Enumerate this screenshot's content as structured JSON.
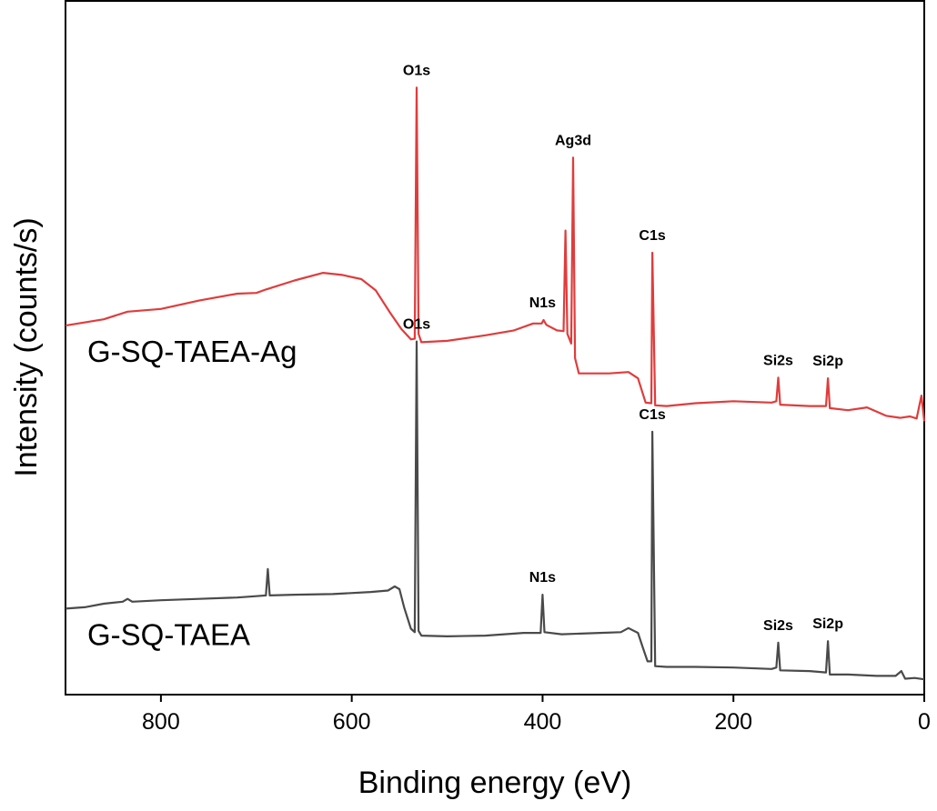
{
  "chart_data": {
    "type": "line",
    "title": "",
    "xlabel": "Binding energy (eV)",
    "ylabel": "Intensity (counts/s)",
    "xlim": [
      900,
      0
    ],
    "x_reversed": true,
    "ylim": [
      0,
      100
    ],
    "y_ticks_shown": false,
    "grid": false,
    "legend": "none",
    "x_ticks": [
      {
        "value": 800,
        "label": "800"
      },
      {
        "value": 600,
        "label": "600"
      },
      {
        "value": 400,
        "label": "400"
      },
      {
        "value": 200,
        "label": "200"
      },
      {
        "value": 0,
        "label": "0"
      }
    ],
    "series": [
      {
        "name": "G-SQ-TAEA-Ag",
        "color": "#e03c3c",
        "points": [
          [
            900,
            53.2
          ],
          [
            860,
            54.1
          ],
          [
            835,
            55.2
          ],
          [
            800,
            55.6
          ],
          [
            760,
            56.8
          ],
          [
            720,
            57.8
          ],
          [
            700,
            57.9
          ],
          [
            690,
            58.4
          ],
          [
            660,
            59.7
          ],
          [
            630,
            60.8
          ],
          [
            610,
            60.5
          ],
          [
            590,
            59.9
          ],
          [
            575,
            58.3
          ],
          [
            560,
            55.1
          ],
          [
            548,
            52.7
          ],
          [
            538,
            51.2
          ],
          [
            534,
            51.3
          ],
          [
            532,
            87.5
          ],
          [
            530,
            52.0
          ],
          [
            527,
            50.8
          ],
          [
            500,
            51.0
          ],
          [
            460,
            51.8
          ],
          [
            430,
            52.5
          ],
          [
            410,
            53.5
          ],
          [
            401,
            53.5
          ],
          [
            399,
            54.0
          ],
          [
            396,
            53.3
          ],
          [
            385,
            52.5
          ],
          [
            378,
            52.4
          ],
          [
            376,
            66.9
          ],
          [
            374,
            52.0
          ],
          [
            370,
            50.6
          ],
          [
            368,
            77.4
          ],
          [
            366,
            48.5
          ],
          [
            362,
            46.3
          ],
          [
            330,
            46.3
          ],
          [
            310,
            46.5
          ],
          [
            300,
            45.6
          ],
          [
            292,
            42.1
          ],
          [
            286,
            42.0
          ],
          [
            285,
            63.7
          ],
          [
            282,
            41.7
          ],
          [
            270,
            41.6
          ],
          [
            240,
            42.0
          ],
          [
            200,
            42.3
          ],
          [
            160,
            42.1
          ],
          [
            155,
            42.3
          ],
          [
            153,
            45.7
          ],
          [
            151,
            41.8
          ],
          [
            120,
            41.6
          ],
          [
            103,
            41.6
          ],
          [
            101,
            45.6
          ],
          [
            99,
            41.3
          ],
          [
            80,
            41.0
          ],
          [
            60,
            41.4
          ],
          [
            40,
            40.2
          ],
          [
            25,
            39.9
          ],
          [
            15,
            40.1
          ],
          [
            8,
            39.8
          ],
          [
            3,
            43.1
          ],
          [
            0,
            39.4
          ]
        ],
        "peak_labels": [
          {
            "label": "O1s",
            "x": 532
          },
          {
            "label": "Ag3d",
            "x": 368
          },
          {
            "label": "C1s",
            "x": 285
          },
          {
            "label": "N1s",
            "x": 400
          },
          {
            "label": "Si2s",
            "x": 153
          },
          {
            "label": "Si2p",
            "x": 101
          }
        ]
      },
      {
        "name": "G-SQ-TAEA",
        "color": "#4a4a4a",
        "points": [
          [
            900,
            12.4
          ],
          [
            880,
            12.6
          ],
          [
            860,
            13.1
          ],
          [
            840,
            13.4
          ],
          [
            835,
            13.8
          ],
          [
            830,
            13.4
          ],
          [
            800,
            13.6
          ],
          [
            760,
            13.8
          ],
          [
            720,
            14.0
          ],
          [
            700,
            14.2
          ],
          [
            690,
            14.3
          ],
          [
            688,
            18.1
          ],
          [
            686,
            14.3
          ],
          [
            660,
            14.4
          ],
          [
            620,
            14.5
          ],
          [
            580,
            14.8
          ],
          [
            562,
            15.0
          ],
          [
            555,
            15.6
          ],
          [
            550,
            15.2
          ],
          [
            545,
            12.5
          ],
          [
            538,
            9.5
          ],
          [
            534,
            9.0
          ],
          [
            532,
            50.9
          ],
          [
            530,
            9.2
          ],
          [
            527,
            8.5
          ],
          [
            500,
            8.4
          ],
          [
            460,
            8.5
          ],
          [
            420,
            8.9
          ],
          [
            402,
            8.9
          ],
          [
            400,
            14.4
          ],
          [
            398,
            9.0
          ],
          [
            380,
            8.7
          ],
          [
            340,
            8.9
          ],
          [
            318,
            9.0
          ],
          [
            310,
            9.6
          ],
          [
            300,
            8.9
          ],
          [
            295,
            6.8
          ],
          [
            290,
            4.8
          ],
          [
            286,
            4.8
          ],
          [
            285,
            37.9
          ],
          [
            282,
            4.1
          ],
          [
            270,
            4.0
          ],
          [
            240,
            4.0
          ],
          [
            200,
            3.9
          ],
          [
            160,
            3.7
          ],
          [
            155,
            3.9
          ],
          [
            153,
            7.5
          ],
          [
            151,
            3.5
          ],
          [
            120,
            3.4
          ],
          [
            103,
            3.2
          ],
          [
            101,
            7.7
          ],
          [
            99,
            2.9
          ],
          [
            80,
            2.9
          ],
          [
            50,
            2.7
          ],
          [
            30,
            2.7
          ],
          [
            24,
            3.4
          ],
          [
            20,
            2.3
          ],
          [
            10,
            2.4
          ],
          [
            0,
            2.2
          ]
        ],
        "peak_labels": [
          {
            "label": "O1s",
            "x": 532
          },
          {
            "label": "C1s",
            "x": 285
          },
          {
            "label": "N1s",
            "x": 400
          },
          {
            "label": "Si2s",
            "x": 153
          },
          {
            "label": "Si2p",
            "x": 101
          }
        ]
      }
    ]
  }
}
